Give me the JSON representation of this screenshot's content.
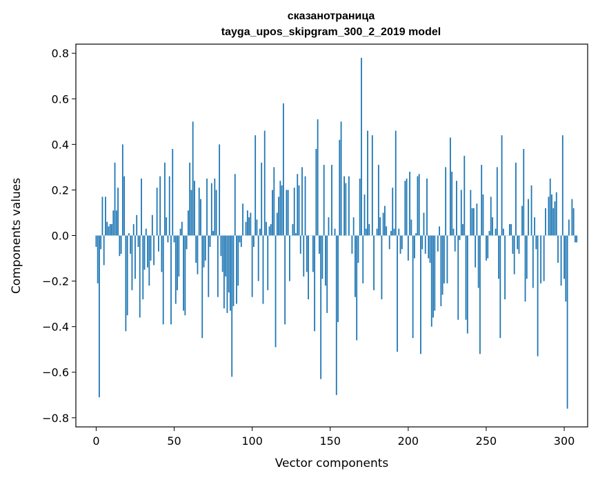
{
  "chart_data": {
    "type": "bar",
    "title": "сказанотраница",
    "subtitle": "tayga_upos_skipgram_300_2_2019 model",
    "xlabel": "Vector components",
    "ylabel": "Components values",
    "xlim": [
      -13,
      315
    ],
    "ylim": [
      -0.84,
      0.84
    ],
    "xticks": [
      0,
      50,
      100,
      150,
      200,
      250,
      300
    ],
    "xtick_labels": [
      "0",
      "50",
      "100",
      "150",
      "200",
      "250",
      "300"
    ],
    "yticks": [
      -0.8,
      -0.6,
      -0.4,
      -0.2,
      0.0,
      0.2,
      0.4,
      0.6,
      0.8
    ],
    "ytick_labels": [
      "−0.8",
      "−0.6",
      "−0.4",
      "−0.2",
      "0.0",
      "0.2",
      "0.4",
      "0.6",
      "0.8"
    ],
    "grid": false,
    "bar_color": "#1f77b4",
    "values": [
      -0.05,
      -0.21,
      -0.71,
      -0.06,
      0.17,
      -0.13,
      0.17,
      0.06,
      0.04,
      0.05,
      0.05,
      0.11,
      0.32,
      0.11,
      0.21,
      -0.09,
      -0.08,
      0.4,
      0.26,
      -0.42,
      -0.35,
      0.01,
      -0.08,
      -0.24,
      0.05,
      -0.19,
      0.09,
      -0.05,
      -0.36,
      0.25,
      -0.28,
      -0.15,
      0.03,
      -0.14,
      -0.22,
      -0.11,
      0.09,
      -0.13,
      0.0,
      0.21,
      -0.07,
      0.26,
      -0.16,
      -0.39,
      0.32,
      0.08,
      -0.03,
      0.26,
      -0.39,
      0.38,
      -0.03,
      -0.3,
      -0.24,
      -0.18,
      0.03,
      0.06,
      -0.33,
      -0.35,
      -0.06,
      0.11,
      0.32,
      0.2,
      0.5,
      0.24,
      -0.12,
      -0.17,
      0.21,
      0.16,
      -0.45,
      -0.14,
      -0.11,
      0.25,
      -0.27,
      -0.05,
      0.23,
      0.02,
      0.25,
      0.2,
      -0.27,
      0.4,
      -0.09,
      -0.16,
      -0.32,
      -0.18,
      -0.34,
      -0.25,
      -0.33,
      -0.62,
      -0.31,
      0.27,
      -0.3,
      -0.22,
      -0.03,
      -0.05,
      0.14,
      0.0,
      0.06,
      0.11,
      0.08,
      0.1,
      -0.27,
      -0.05,
      0.44,
      0.07,
      -0.2,
      0.03,
      0.32,
      -0.3,
      0.46,
      0.06,
      -0.24,
      0.04,
      0.05,
      0.2,
      0.3,
      -0.49,
      0.1,
      0.17,
      0.24,
      0.22,
      0.58,
      -0.39,
      0.2,
      0.2,
      -0.2,
      0.0,
      0.05,
      0.21,
      0.01,
      0.27,
      0.22,
      -0.08,
      0.3,
      -0.18,
      0.26,
      -0.16,
      -0.28,
      0.0,
      0.0,
      -0.16,
      -0.42,
      0.38,
      0.51,
      -0.08,
      -0.63,
      -0.19,
      0.31,
      -0.22,
      -0.34,
      0.08,
      0.0,
      0.31,
      0.0,
      0.03,
      -0.7,
      -0.38,
      0.42,
      0.5,
      0.0,
      0.26,
      0.23,
      0.0,
      0.26,
      0.0,
      -0.08,
      0.08,
      -0.27,
      -0.46,
      -0.12,
      0.25,
      0.78,
      -0.21,
      0.18,
      0.03,
      0.46,
      0.05,
      0.0,
      0.44,
      -0.24,
      0.0,
      0.03,
      0.31,
      0.08,
      -0.28,
      0.1,
      0.13,
      0.04,
      0.0,
      -0.06,
      0.02,
      0.21,
      0.03,
      0.46,
      -0.51,
      0.03,
      -0.08,
      -0.06,
      0.0,
      0.24,
      0.25,
      -0.11,
      0.28,
      0.07,
      -0.45,
      -0.1,
      0.01,
      0.26,
      0.27,
      -0.52,
      -0.06,
      0.1,
      -0.08,
      0.25,
      -0.1,
      -0.12,
      -0.4,
      -0.36,
      -0.33,
      0.0,
      -0.07,
      0.04,
      -0.31,
      -0.26,
      -0.21,
      0.3,
      -0.21,
      0.0,
      0.43,
      0.28,
      0.03,
      -0.07,
      0.24,
      -0.37,
      -0.02,
      0.2,
      0.05,
      0.35,
      -0.37,
      -0.43,
      0.0,
      0.2,
      0.12,
      0.12,
      -0.14,
      0.14,
      -0.23,
      -0.52,
      0.31,
      0.18,
      0.0,
      -0.11,
      -0.1,
      0.02,
      0.17,
      0.08,
      0.0,
      0.03,
      0.3,
      -0.19,
      -0.45,
      0.44,
      0.03,
      -0.28,
      0.0,
      0.0,
      0.05,
      0.05,
      -0.08,
      -0.17,
      0.32,
      -0.06,
      -0.08,
      0.0,
      0.13,
      0.38,
      -0.29,
      -0.19,
      0.16,
      0.0,
      0.22,
      -0.23,
      0.08,
      -0.06,
      -0.53,
      0.0,
      -0.21,
      0.0,
      -0.2,
      0.12,
      0.0,
      0.17,
      0.25,
      0.18,
      0.12,
      0.15,
      0.19,
      -0.12,
      0.0,
      -0.22,
      0.44,
      -0.19,
      -0.29,
      -0.76,
      0.07,
      0.0,
      0.16,
      0.12,
      -0.03,
      -0.03
    ]
  }
}
